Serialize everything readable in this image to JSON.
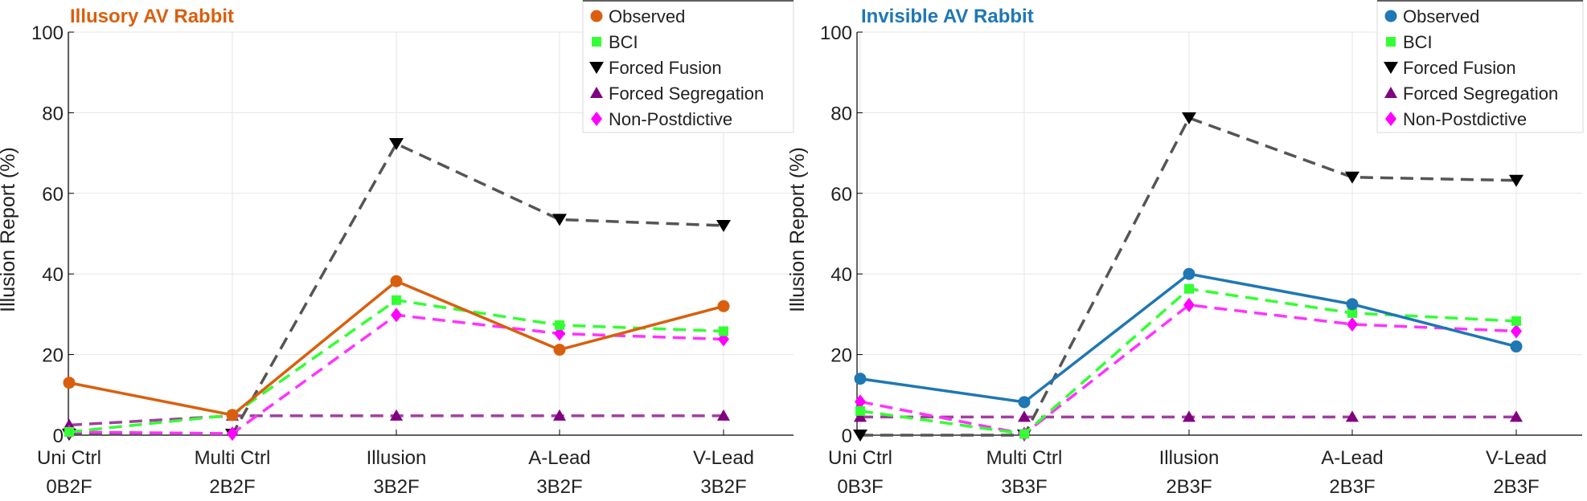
{
  "colors": {
    "observed_left": "#D95F0E",
    "observed_right": "#1F77B4",
    "bci": "#33FF33",
    "forced_fusion": "#555555",
    "forced_segregation": "#A040A0",
    "non_postdictive": "#FF33FF",
    "grid": "#E6E6E6",
    "axis": "#000000"
  },
  "chart_data": [
    {
      "type": "line",
      "title": "Illusory AV Rabbit",
      "ylabel": "Illusion Report (%)",
      "xlabel": "",
      "ylim": [
        0,
        100
      ],
      "yticks": [
        0,
        20,
        40,
        60,
        80,
        100
      ],
      "categories": [
        "Uni Ctrl",
        "Multi Ctrl",
        "Illusion",
        "A-Lead",
        "V-Lead"
      ],
      "subcategories": [
        "0B2F",
        "2B2F",
        "3B2F",
        "3B2F",
        "3B2F"
      ],
      "legend_position": "top-right",
      "grid": true,
      "series": [
        {
          "name": "Observed",
          "values": [
            13,
            5,
            38.2,
            21.2,
            32
          ],
          "marker": "circle",
          "style": "solid"
        },
        {
          "name": "BCI",
          "values": [
            0.8,
            5,
            33.5,
            27.3,
            25.8
          ],
          "marker": "square",
          "style": "dashed"
        },
        {
          "name": "Forced Fusion",
          "values": [
            0.2,
            0.2,
            72.3,
            53.5,
            52
          ],
          "marker": "triangle-down",
          "style": "dashed"
        },
        {
          "name": "Forced Segregation",
          "values": [
            2.5,
            4.8,
            4.8,
            4.8,
            4.8
          ],
          "marker": "triangle-up",
          "style": "dashed"
        },
        {
          "name": "Non-Postdictive",
          "values": [
            0.8,
            0.4,
            29.8,
            25.2,
            23.8
          ],
          "marker": "diamond",
          "style": "dashed"
        }
      ]
    },
    {
      "type": "line",
      "title": "Invisible AV Rabbit",
      "ylabel": "Illusion Report (%)",
      "xlabel": "",
      "ylim": [
        0,
        100
      ],
      "yticks": [
        0,
        20,
        40,
        60,
        80,
        100
      ],
      "categories": [
        "Uni Ctrl",
        "Multi Ctrl",
        "Illusion",
        "A-Lead",
        "V-Lead"
      ],
      "subcategories": [
        "0B3F",
        "3B3F",
        "2B3F",
        "2B3F",
        "2B3F"
      ],
      "legend_position": "top-right",
      "grid": true,
      "series": [
        {
          "name": "Observed",
          "values": [
            14,
            8.2,
            40,
            32.5,
            22
          ],
          "marker": "circle",
          "style": "solid"
        },
        {
          "name": "BCI",
          "values": [
            6,
            0.3,
            36.3,
            30.3,
            28.3
          ],
          "marker": "square",
          "style": "dashed"
        },
        {
          "name": "Forced Fusion",
          "values": [
            0,
            0,
            78.7,
            64,
            63.2
          ],
          "marker": "triangle-down",
          "style": "dashed"
        },
        {
          "name": "Forced Segregation",
          "values": [
            4.5,
            4.5,
            4.5,
            4.5,
            4.5
          ],
          "marker": "triangle-up",
          "style": "dashed"
        },
        {
          "name": "Non-Postdictive",
          "values": [
            8.3,
            0.3,
            32.3,
            27.5,
            25.8
          ],
          "marker": "diamond",
          "style": "dashed"
        }
      ]
    }
  ]
}
